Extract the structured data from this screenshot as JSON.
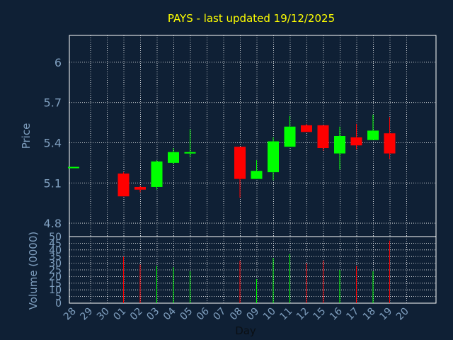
{
  "chart_data": {
    "type": "candlestick",
    "title": "PAYS - last updated 19/12/2025",
    "ylabel": "Price",
    "volume_label": "Volume (0000)",
    "xlabel": "Day",
    "days": [
      "28",
      "29",
      "30",
      "01",
      "02",
      "03",
      "04",
      "05",
      "06",
      "07",
      "08",
      "09",
      "10",
      "11",
      "12",
      "15",
      "16",
      "17",
      "18",
      "19",
      "20"
    ],
    "price_ticks": [
      "6",
      "5.7",
      "5.4",
      "5.1",
      "4.8"
    ],
    "price_tick_values": [
      6,
      5.7,
      5.4,
      5.1,
      4.8
    ],
    "price_range": [
      4.7,
      6.2
    ],
    "volume_ticks": [
      "50",
      "45",
      "40",
      "35",
      "30",
      "25",
      "20",
      "15",
      "10",
      "5",
      "0"
    ],
    "volume_range": [
      0,
      50
    ],
    "colors": {
      "up": "#00ff00",
      "down": "#ff0000",
      "grid": "#ffffff",
      "background": "#0f2035",
      "title": "#ffff00",
      "axis_text": "#7f9fbf"
    },
    "candles": [
      {
        "day": "28",
        "open": 5.22,
        "close": 5.22,
        "high": 5.22,
        "low": 5.22,
        "volume": 0
      },
      {
        "day": "01",
        "open": 5.17,
        "close": 5.0,
        "high": 5.18,
        "low": 5.0,
        "volume": 35
      },
      {
        "day": "02",
        "open": 5.07,
        "close": 5.05,
        "high": 5.08,
        "low": 5.03,
        "volume": 29
      },
      {
        "day": "03",
        "open": 5.07,
        "close": 5.26,
        "high": 5.27,
        "low": 5.05,
        "volume": 28
      },
      {
        "day": "04",
        "open": 5.25,
        "close": 5.33,
        "high": 5.36,
        "low": 5.24,
        "volume": 27
      },
      {
        "day": "05",
        "open": 5.32,
        "close": 5.33,
        "high": 5.5,
        "low": 5.29,
        "volume": 24
      },
      {
        "day": "08",
        "open": 5.37,
        "close": 5.13,
        "high": 5.37,
        "low": 4.99,
        "volume": 32
      },
      {
        "day": "09",
        "open": 5.13,
        "close": 5.19,
        "high": 5.27,
        "low": 5.13,
        "volume": 18
      },
      {
        "day": "10",
        "open": 5.18,
        "close": 5.41,
        "high": 5.44,
        "low": 5.12,
        "volume": 34
      },
      {
        "day": "11",
        "open": 5.37,
        "close": 5.52,
        "high": 5.6,
        "low": 5.37,
        "volume": 37
      },
      {
        "day": "12",
        "open": 5.53,
        "close": 5.48,
        "high": 5.54,
        "low": 5.48,
        "volume": 30
      },
      {
        "day": "15",
        "open": 5.53,
        "close": 5.36,
        "high": 5.53,
        "low": 5.34,
        "volume": 32
      },
      {
        "day": "16",
        "open": 5.32,
        "close": 5.45,
        "high": 5.52,
        "low": 5.2,
        "volume": 25
      },
      {
        "day": "17",
        "open": 5.44,
        "close": 5.38,
        "high": 5.54,
        "low": 5.35,
        "volume": 28
      },
      {
        "day": "18",
        "open": 5.42,
        "close": 5.49,
        "high": 5.61,
        "low": 5.42,
        "volume": 24
      },
      {
        "day": "19",
        "open": 5.47,
        "close": 5.32,
        "high": 5.59,
        "low": 5.28,
        "volume": 47
      }
    ]
  }
}
